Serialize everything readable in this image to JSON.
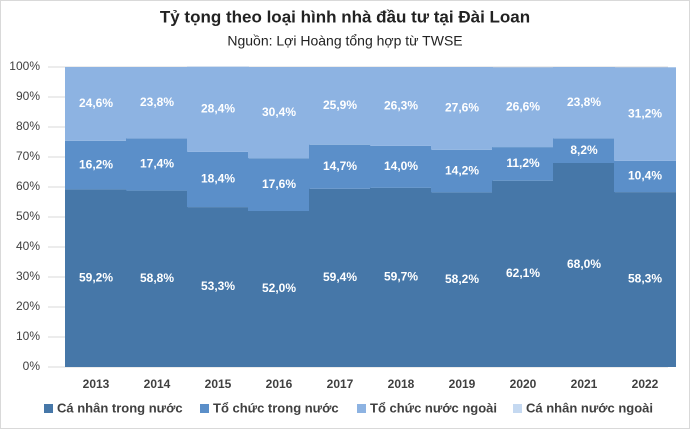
{
  "chart_data": {
    "type": "stacked_bar",
    "title": "Tỷ tọng theo loại hình nhà đầu tư tại Đài Loan",
    "subtitle": "Nguồn: Lợi Hoàng tổng hợp từ TWSE",
    "categories": [
      "2013",
      "2014",
      "2015",
      "2016",
      "2017",
      "2018",
      "2019",
      "2020",
      "2021",
      "2022"
    ],
    "series": [
      {
        "name": "Cá nhân trong nước",
        "color": "#4677a8",
        "values": [
          59.2,
          58.8,
          53.3,
          52.0,
          59.4,
          59.7,
          58.2,
          62.1,
          68.0,
          58.3
        ],
        "value_labels": [
          "59,2%",
          "58,8%",
          "53,3%",
          "52,0%",
          "59,4%",
          "59,7%",
          "58,2%",
          "62,1%",
          "68,0%",
          "58,3%"
        ]
      },
      {
        "name": "Tổ chức trong nước",
        "color": "#5b8fc9",
        "values": [
          16.2,
          17.4,
          18.4,
          17.6,
          14.7,
          14.0,
          14.2,
          11.2,
          8.2,
          10.4
        ],
        "value_labels": [
          "16,2%",
          "17,4%",
          "18,4%",
          "17,6%",
          "14,7%",
          "14,0%",
          "14,2%",
          "11,2%",
          "8,2%",
          "10,4%"
        ]
      },
      {
        "name": "Tổ chức nước ngoài",
        "color": "#8db3e2",
        "values": [
          24.6,
          23.8,
          28.4,
          30.4,
          25.9,
          26.3,
          27.6,
          26.6,
          23.8,
          31.2
        ],
        "value_labels": [
          "24,6%",
          "23,8%",
          "28,4%",
          "30,4%",
          "25,9%",
          "26,3%",
          "27,6%",
          "26,6%",
          "23,8%",
          "31,2%"
        ]
      },
      {
        "name": "Cá nhân nước ngoài",
        "color": "#c5d9f1",
        "values": [
          0,
          0,
          0,
          0,
          0,
          0,
          0,
          0,
          0,
          0
        ]
      }
    ],
    "ylim": [
      0,
      100
    ],
    "yticks": [
      {
        "value": 0,
        "label": "0%"
      },
      {
        "value": 10,
        "label": "10%"
      },
      {
        "value": 20,
        "label": "20%"
      },
      {
        "value": 30,
        "label": "30%"
      },
      {
        "value": 40,
        "label": "40%"
      },
      {
        "value": 50,
        "label": "50%"
      },
      {
        "value": 60,
        "label": "60%"
      },
      {
        "value": 70,
        "label": "70%"
      },
      {
        "value": 80,
        "label": "80%"
      },
      {
        "value": 90,
        "label": "90%"
      },
      {
        "value": 100,
        "label": "100%"
      }
    ],
    "grid": true,
    "legend": "bottom"
  }
}
